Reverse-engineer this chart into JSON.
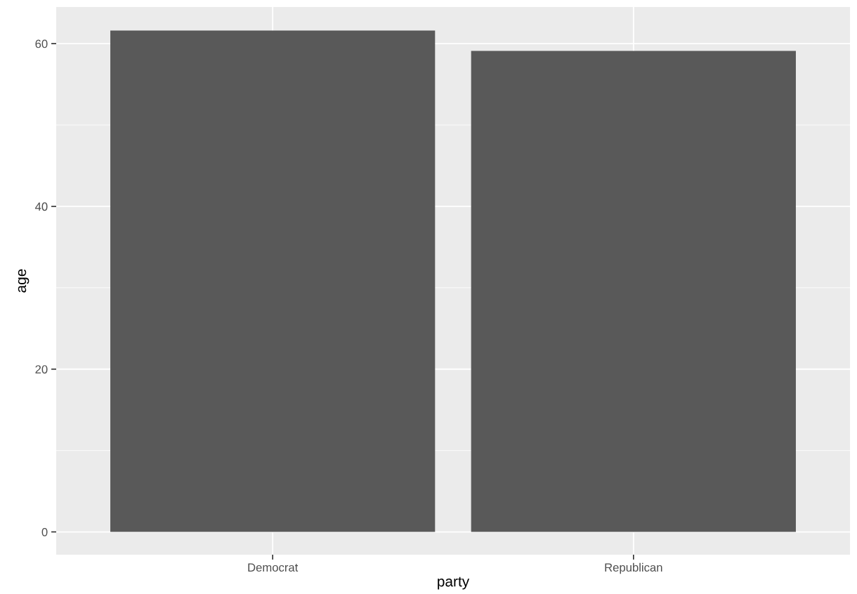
{
  "chart_data": {
    "type": "bar",
    "xlabel": "party",
    "ylabel": "age",
    "categories": [
      "Democrat",
      "Republican"
    ],
    "values": [
      61.6,
      59.1
    ],
    "color": "#595959",
    "ylim": [
      -2.8,
      64.5
    ],
    "yticks": [
      0,
      20,
      40,
      60
    ],
    "grid": true
  }
}
